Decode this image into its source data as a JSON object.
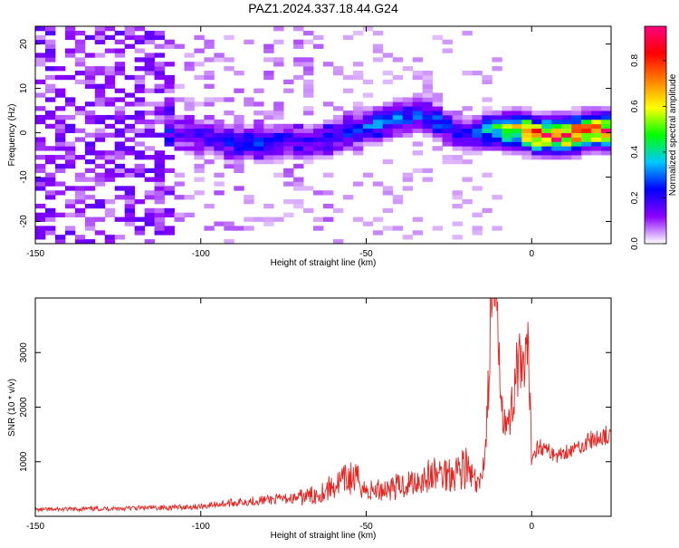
{
  "chart_data": [
    {
      "type": "heatmap",
      "title": "PAZ1.2024.337.18.44.G24",
      "xlabel": "Height of straight line (km)",
      "ylabel": "Frequency (Hz)",
      "xlim": [
        -150,
        24
      ],
      "ylim": [
        -25,
        24
      ],
      "xticks": [
        -150,
        -100,
        -50,
        0
      ],
      "yticks": [
        -20,
        -10,
        0,
        10,
        20
      ],
      "colorbar": {
        "label": "Normalized spectral amplitude",
        "range": [
          0,
          0.95
        ],
        "ticks": [
          0.0,
          0.2,
          0.4,
          0.6,
          0.8
        ],
        "tick_labels": [
          "0.0",
          "0.2",
          "0.4",
          "0.6",
          "0.8"
        ],
        "colormap": [
          "#ffffff",
          "#8b00ff",
          "#0000ff",
          "#00c8ff",
          "#00ff00",
          "#ffff00",
          "#ff8000",
          "#ff0000",
          "#ff0080"
        ]
      },
      "ridge": {
        "x": [
          -112,
          -105,
          -95,
          -90,
          -85,
          -80,
          -75,
          -70,
          -65,
          -60,
          -55,
          -50,
          -45,
          -40,
          -35,
          -30,
          -25,
          -20,
          -15,
          -10,
          -5,
          0,
          5,
          10,
          15,
          20,
          24
        ],
        "frequency": [
          1,
          -1,
          -2,
          -3,
          -3,
          -3,
          -2,
          -3,
          -2,
          -1,
          0,
          1,
          2,
          3,
          4,
          2,
          0,
          -1,
          0,
          0,
          0,
          -1,
          -1,
          -1,
          0,
          0,
          0
        ],
        "amplitude": [
          0.15,
          0.15,
          0.22,
          0.25,
          0.25,
          0.22,
          0.2,
          0.2,
          0.22,
          0.22,
          0.25,
          0.28,
          0.32,
          0.3,
          0.3,
          0.28,
          0.22,
          0.2,
          0.35,
          0.55,
          0.75,
          0.85,
          0.9,
          0.9,
          0.85,
          0.85,
          0.9
        ]
      },
      "grid": false
    },
    {
      "type": "line",
      "xlabel": "Height of straight line (km)",
      "ylabel": "SNR (10 * v/v)",
      "xlim": [
        -150,
        24
      ],
      "ylim": [
        0,
        4000
      ],
      "xticks": [
        -150,
        -100,
        -50,
        0
      ],
      "yticks": [
        1000,
        2000,
        3000
      ],
      "line_color": "#e8231f",
      "series": [
        {
          "x": [
            -150,
            -140,
            -130,
            -120,
            -110,
            -100,
            -95,
            -90,
            -85,
            -80,
            -75,
            -70,
            -65,
            -60,
            -55,
            -52,
            -50,
            -45,
            -40,
            -35,
            -30,
            -25,
            -20,
            -16,
            -14,
            -13,
            -12,
            -11,
            -10,
            -9,
            -8,
            -7,
            -6,
            -5,
            -4,
            -3,
            -2,
            -1,
            0,
            2,
            5,
            8,
            10,
            12,
            15,
            18,
            20,
            22,
            24
          ],
          "y": [
            120,
            130,
            140,
            150,
            160,
            180,
            220,
            250,
            280,
            300,
            320,
            340,
            400,
            550,
            700,
            650,
            450,
            500,
            550,
            650,
            750,
            800,
            900,
            500,
            1200,
            2500,
            4000,
            3800,
            3200,
            2200,
            1800,
            1600,
            2000,
            2600,
            2800,
            2500,
            2700,
            2900,
            1100,
            1300,
            1200,
            1100,
            1200,
            1200,
            1300,
            1400,
            1400,
            1500,
            1400
          ]
        }
      ],
      "grid": false
    }
  ]
}
